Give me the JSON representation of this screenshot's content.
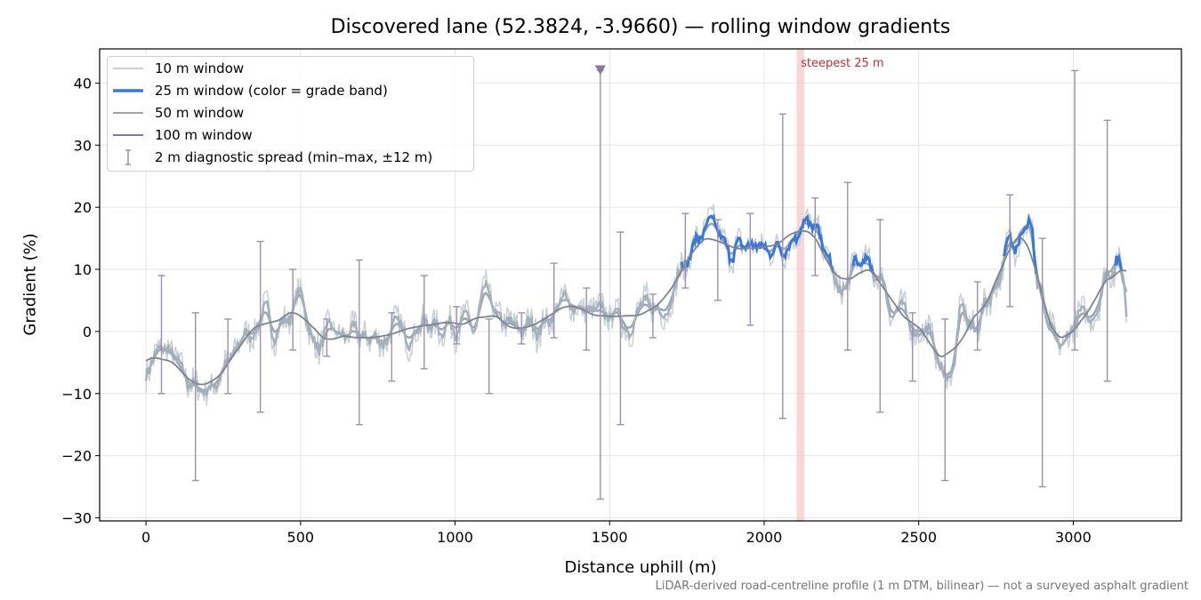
{
  "chart_data": {
    "type": "line",
    "title": "Discovered lane (52.3824, -3.9660) — rolling window gradients",
    "xlabel": "Distance uphill (m)",
    "ylabel": "Gradient (%)",
    "xlim": [
      -150,
      3350
    ],
    "ylim": [
      -30.5,
      45.5
    ],
    "xticks": [
      0,
      500,
      1000,
      1500,
      2000,
      2500,
      3000
    ],
    "xtick_labels": [
      "0",
      "500",
      "1000",
      "1500",
      "2000",
      "2500",
      "3000"
    ],
    "yticks": [
      -30,
      -20,
      -10,
      0,
      10,
      20,
      30,
      40
    ],
    "ytick_labels": [
      "−30",
      "−20",
      "−10",
      "0",
      "10",
      "20",
      "30",
      "40"
    ],
    "grid": true,
    "legend_placement": "top-left",
    "colors": {
      "w10": "#c8d0d8",
      "w25_gray": "#a4b0bd",
      "w25_blue": "#3a78d8",
      "w25_orange": "#e08a00",
      "w50": "#9aa6b2",
      "w100": "#7d8490",
      "errorbar": "#9c90b0",
      "steepest_band": "#f5caca",
      "steepest_text": "#c0303a"
    },
    "grade_band_threshold_blue": 10,
    "grade_band_threshold_orange": 20,
    "anchors": {
      "x": [
        0,
        60,
        120,
        160,
        200,
        260,
        330,
        380,
        420,
        460,
        500,
        540,
        570,
        600,
        640,
        700,
        760,
        820,
        880,
        940,
        1000,
        1060,
        1100,
        1150,
        1200,
        1250,
        1300,
        1340,
        1380,
        1420,
        1470,
        1520,
        1560,
        1620,
        1680,
        1740,
        1770,
        1800,
        1840,
        1880,
        1920,
        1960,
        2000,
        2040,
        2080,
        2100,
        2120,
        2150,
        2180,
        2210,
        2240,
        2270,
        2300,
        2340,
        2380,
        2420,
        2460,
        2500,
        2540,
        2580,
        2610,
        2640,
        2680,
        2720,
        2760,
        2800,
        2830,
        2860,
        2890,
        2920,
        2960,
        3000,
        3040,
        3080,
        3110,
        3140,
        3160,
        3175
      ],
      "y": [
        -6,
        -3,
        -7,
        -9,
        -9,
        -6,
        0,
        2,
        1,
        2,
        6,
        -1,
        -3,
        0,
        -1,
        -1,
        -1,
        0,
        1,
        1,
        2,
        0,
        5,
        1,
        0,
        1,
        2,
        4,
        5,
        3,
        2,
        3,
        2,
        3,
        5,
        10,
        14,
        15,
        16,
        13,
        13,
        14,
        13,
        14,
        15,
        16,
        18,
        16,
        15,
        11,
        6,
        7,
        11,
        10,
        9,
        3,
        2,
        1,
        -1,
        -7,
        -6,
        3,
        0,
        5,
        9,
        14,
        18,
        17,
        7,
        -1,
        -3,
        1,
        2,
        5,
        10,
        12,
        9,
        3
      ]
    },
    "series": [
      {
        "name": "10 m window"
      },
      {
        "name": "25 m window (color = grade band)"
      },
      {
        "name": "50 m window"
      },
      {
        "name": "100 m window"
      },
      {
        "name": "2 m diagnostic spread (min–max, ±12 m)"
      }
    ],
    "errorbars": [
      {
        "x": 50,
        "min": -10,
        "max": 9
      },
      {
        "x": 160,
        "min": -24,
        "max": 3
      },
      {
        "x": 265,
        "min": -10,
        "max": 2
      },
      {
        "x": 370,
        "min": -13,
        "max": 14.5
      },
      {
        "x": 475,
        "min": -3,
        "max": 10
      },
      {
        "x": 585,
        "min": -4,
        "max": 2
      },
      {
        "x": 690,
        "min": -15,
        "max": 11.5
      },
      {
        "x": 795,
        "min": -8,
        "max": 3
      },
      {
        "x": 900,
        "min": -6,
        "max": 9
      },
      {
        "x": 1005,
        "min": -2,
        "max": 4
      },
      {
        "x": 1110,
        "min": -10,
        "max": 2
      },
      {
        "x": 1215,
        "min": -2,
        "max": 3
      },
      {
        "x": 1320,
        "min": -1,
        "max": 11
      },
      {
        "x": 1425,
        "min": -3,
        "max": 7
      },
      {
        "x": 1470,
        "min": -27,
        "max": 42
      },
      {
        "x": 1535,
        "min": -15,
        "max": 16
      },
      {
        "x": 1640,
        "min": -1,
        "max": 6
      },
      {
        "x": 1745,
        "min": 7,
        "max": 19
      },
      {
        "x": 1850,
        "min": 5,
        "max": 18
      },
      {
        "x": 1955,
        "min": 1,
        "max": 19
      },
      {
        "x": 2060,
        "min": -14,
        "max": 35
      },
      {
        "x": 2165,
        "min": 9,
        "max": 21.5
      },
      {
        "x": 2270,
        "min": -3,
        "max": 24
      },
      {
        "x": 2375,
        "min": -13,
        "max": 18
      },
      {
        "x": 2480,
        "min": -8,
        "max": 3
      },
      {
        "x": 2585,
        "min": -24,
        "max": 2
      },
      {
        "x": 2690,
        "min": -3,
        "max": 8
      },
      {
        "x": 2795,
        "min": 4,
        "max": 22
      },
      {
        "x": 2900,
        "min": -25,
        "max": 15
      },
      {
        "x": 3005,
        "min": -3,
        "max": 42
      },
      {
        "x": 3110,
        "min": -8,
        "max": 34
      }
    ],
    "marker_triangle": {
      "x": 1470,
      "y": 42
    },
    "steepest_band": {
      "x0": 2105,
      "x1": 2130,
      "label": "steepest 25 m"
    },
    "footnote": "LiDAR-derived road-centreline profile (1 m DTM, bilinear) — not a surveyed asphalt gradient"
  }
}
